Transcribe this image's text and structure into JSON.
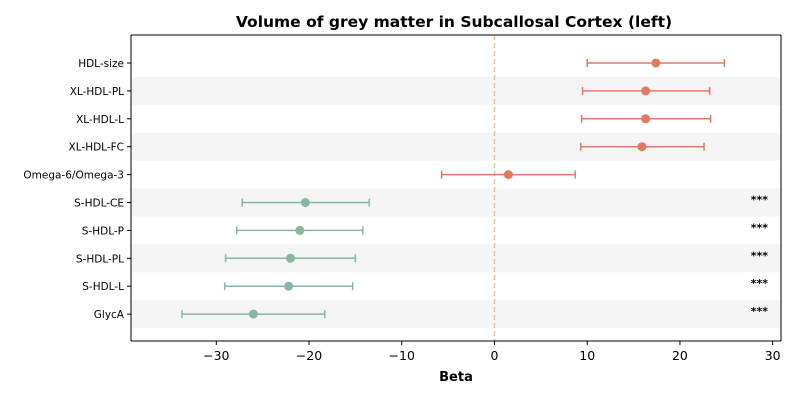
{
  "chart_data": {
    "type": "forest",
    "title": "Volume of grey matter in Subcallosal Cortex (left)",
    "xlabel": "Beta",
    "ylabel": "",
    "xlim": [
      -39.2,
      30.9
    ],
    "xticks": [
      -30,
      -20,
      -10,
      0,
      10,
      20,
      30
    ],
    "xtick_labels": [
      "−30",
      "−20",
      "−10",
      "0",
      "10",
      "20",
      "30"
    ],
    "reference_line": 0,
    "grid": false,
    "row_banding": true,
    "colors": {
      "positive": "#e07b62",
      "negative": "#86b8a0",
      "reference": "#f4c27f",
      "band": "#f5f5f5"
    },
    "rows": [
      {
        "label": "HDL-size",
        "beta": 17.4,
        "ci": [
          10.0,
          24.8
        ],
        "sig": "",
        "sign": "positive"
      },
      {
        "label": "XL-HDL-PL",
        "beta": 16.3,
        "ci": [
          9.5,
          23.2
        ],
        "sig": "",
        "sign": "positive"
      },
      {
        "label": "XL-HDL-L",
        "beta": 16.3,
        "ci": [
          9.4,
          23.3
        ],
        "sig": "",
        "sign": "positive"
      },
      {
        "label": "XL-HDL-FC",
        "beta": 15.9,
        "ci": [
          9.3,
          22.6
        ],
        "sig": "",
        "sign": "positive"
      },
      {
        "label": "Omega-6/Omega-3",
        "beta": 1.5,
        "ci": [
          -5.7,
          8.7
        ],
        "sig": "",
        "sign": "positive"
      },
      {
        "label": "S-HDL-CE",
        "beta": -20.4,
        "ci": [
          -27.2,
          -13.5
        ],
        "sig": "***",
        "sign": "negative"
      },
      {
        "label": "S-HDL-P",
        "beta": -21.0,
        "ci": [
          -27.8,
          -14.2
        ],
        "sig": "***",
        "sign": "negative"
      },
      {
        "label": "S-HDL-PL",
        "beta": -22.0,
        "ci": [
          -29.0,
          -15.0
        ],
        "sig": "***",
        "sign": "negative"
      },
      {
        "label": "S-HDL-L",
        "beta": -22.2,
        "ci": [
          -29.1,
          -15.3
        ],
        "sig": "***",
        "sign": "negative"
      },
      {
        "label": "GlycA",
        "beta": -26.0,
        "ci": [
          -33.7,
          -18.3
        ],
        "sig": "***",
        "sign": "negative"
      }
    ]
  }
}
